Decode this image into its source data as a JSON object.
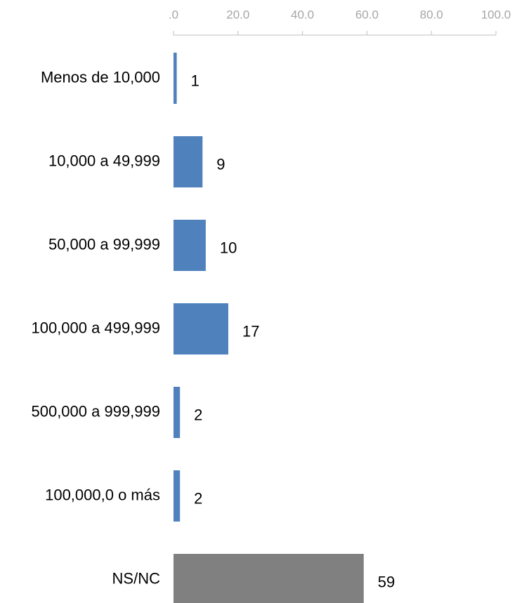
{
  "chart_data": {
    "type": "barh",
    "categories": [
      "Menos de 10,000",
      "10,000 a 49,999",
      "50,000 a 99,999",
      "100,000 a 499,999",
      "500,000 a 999,999",
      "100,000,0 o más",
      "NS/NC"
    ],
    "values": [
      1,
      9,
      10,
      17,
      2,
      2,
      59
    ],
    "colors": [
      "#4f81bd",
      "#4f81bd",
      "#4f81bd",
      "#4f81bd",
      "#4f81bd",
      "#4f81bd",
      "#808080"
    ],
    "xlim": [
      0,
      100
    ],
    "xticks": [
      {
        "value": 0,
        "label": ".0"
      },
      {
        "value": 20,
        "label": "20.0"
      },
      {
        "value": 40,
        "label": "40.0"
      },
      {
        "value": 60,
        "label": "60.0"
      },
      {
        "value": 80,
        "label": "80.0"
      },
      {
        "value": 100,
        "label": "100.0"
      }
    ]
  }
}
